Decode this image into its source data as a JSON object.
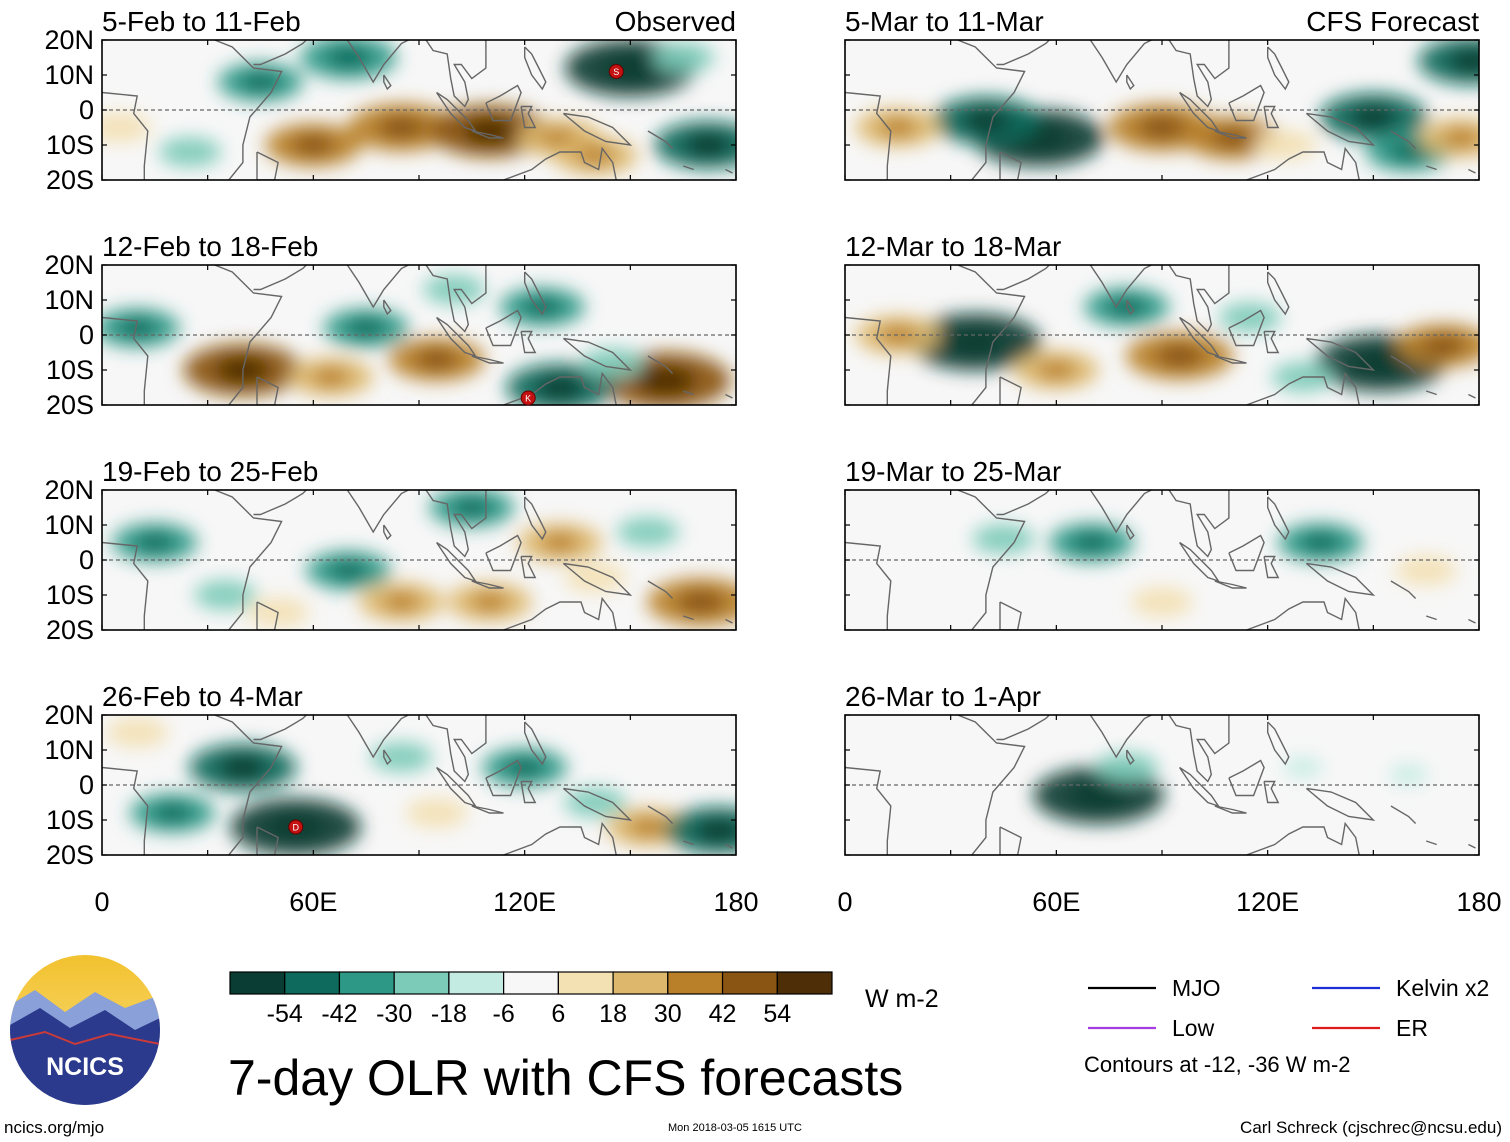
{
  "title": "7-day OLR with CFS forecasts",
  "units": "W m-2",
  "footer": {
    "site": "ncics.org/mjo",
    "timestamp": "Mon 2018-03-05 1615 UTC",
    "author": "Carl Schreck (cjschrec@ncsu.edu)"
  },
  "logo": {
    "text": "NCICS",
    "colors": {
      "sky_top": "#f2c12e",
      "sky_bottom": "#f9e28a",
      "mountains": "#2b3a8c",
      "band": "#8aa0d8"
    }
  },
  "column_headers": {
    "left": "Observed",
    "right": "CFS Forecast"
  },
  "legend": {
    "items": [
      {
        "label": "MJO",
        "color": "#000000"
      },
      {
        "label": "Kelvin x2",
        "color": "#1c2fd6"
      },
      {
        "label": "Low",
        "color": "#a43ce0"
      },
      {
        "label": "ER",
        "color": "#e01a1a"
      }
    ],
    "note": "Contours at -12, -36 W m-2"
  },
  "colorbar": {
    "ticks": [
      "-54",
      "-42",
      "-30",
      "-18",
      "-6",
      "6",
      "18",
      "30",
      "42",
      "54"
    ],
    "colors": [
      "#0a3d33",
      "#0d6a5c",
      "#2e9887",
      "#7ccab8",
      "#c4ebe2",
      "#f7f7f7",
      "#f3e1b3",
      "#ddb86c",
      "#b98029",
      "#8a5512",
      "#4e2e06"
    ]
  },
  "chart_data": [
    {
      "type": "heatmap",
      "title": "5-Feb to 11-Feb",
      "header": "Observed",
      "xlabel": "",
      "ylabel": "",
      "xlim": [
        0,
        180
      ],
      "ylim": [
        -20,
        20
      ],
      "xticks": [
        "0",
        "60E",
        "120E",
        "180"
      ],
      "yticks": [
        "20N",
        "10N",
        "0",
        "10S",
        "20S"
      ],
      "anomalies": [
        {
          "lon": 85,
          "lat": -5,
          "value": 42
        },
        {
          "lon": 110,
          "lat": -6,
          "value": 48
        },
        {
          "lon": 60,
          "lat": -10,
          "value": 36
        },
        {
          "lon": 130,
          "lat": -8,
          "value": 30
        },
        {
          "lon": 70,
          "lat": 15,
          "value": -36
        },
        {
          "lon": 150,
          "lat": 12,
          "value": -54
        },
        {
          "lon": 45,
          "lat": 8,
          "value": -30
        },
        {
          "lon": 25,
          "lat": -12,
          "value": -18
        },
        {
          "lon": 172,
          "lat": -10,
          "value": -42
        },
        {
          "lon": 140,
          "lat": -13,
          "value": 30
        },
        {
          "lon": 5,
          "lat": -5,
          "value": 18
        },
        {
          "lon": 165,
          "lat": 15,
          "value": -18
        }
      ],
      "markers": [
        {
          "label": "S",
          "lon": 146,
          "lat": 11
        }
      ]
    },
    {
      "type": "heatmap",
      "title": "12-Feb to 18-Feb",
      "header": "",
      "xlabel": "",
      "ylabel": "",
      "xlim": [
        0,
        180
      ],
      "ylim": [
        -20,
        20
      ],
      "xticks": [
        "0",
        "60E",
        "120E",
        "180"
      ],
      "yticks": [
        "20N",
        "10N",
        "0",
        "10S",
        "20S"
      ],
      "anomalies": [
        {
          "lon": 95,
          "lat": -7,
          "value": 36
        },
        {
          "lon": 40,
          "lat": -10,
          "value": 48
        },
        {
          "lon": 160,
          "lat": -13,
          "value": 54
        },
        {
          "lon": 130,
          "lat": -15,
          "value": -42
        },
        {
          "lon": 75,
          "lat": 2,
          "value": -30
        },
        {
          "lon": 125,
          "lat": 8,
          "value": -30
        },
        {
          "lon": 10,
          "lat": 2,
          "value": -30
        },
        {
          "lon": 100,
          "lat": 13,
          "value": -18
        },
        {
          "lon": 65,
          "lat": -12,
          "value": 30
        },
        {
          "lon": 145,
          "lat": -8,
          "value": -18
        }
      ],
      "markers": [
        {
          "label": "K",
          "lon": 121,
          "lat": -18
        }
      ]
    },
    {
      "type": "heatmap",
      "title": "19-Feb to 25-Feb",
      "header": "",
      "xlabel": "",
      "ylabel": "",
      "xlim": [
        0,
        180
      ],
      "ylim": [
        -20,
        20
      ],
      "xticks": [
        "0",
        "60E",
        "120E",
        "180"
      ],
      "yticks": [
        "20N",
        "10N",
        "0",
        "10S",
        "20S"
      ],
      "anomalies": [
        {
          "lon": 70,
          "lat": -3,
          "value": -30
        },
        {
          "lon": 15,
          "lat": 5,
          "value": -30
        },
        {
          "lon": 105,
          "lat": 15,
          "value": -30
        },
        {
          "lon": 170,
          "lat": -12,
          "value": 42
        },
        {
          "lon": 110,
          "lat": -12,
          "value": 30
        },
        {
          "lon": 85,
          "lat": -12,
          "value": 30
        },
        {
          "lon": 140,
          "lat": -5,
          "value": 18
        },
        {
          "lon": 35,
          "lat": -10,
          "value": -18
        },
        {
          "lon": 155,
          "lat": 8,
          "value": -18
        },
        {
          "lon": 130,
          "lat": 5,
          "value": 30
        },
        {
          "lon": 50,
          "lat": -15,
          "value": 18
        }
      ],
      "markers": []
    },
    {
      "type": "heatmap",
      "title": "26-Feb to 4-Mar",
      "header": "",
      "xlabel": "",
      "ylabel": "",
      "xlim": [
        0,
        180
      ],
      "ylim": [
        -20,
        20
      ],
      "xticks": [
        "0",
        "60E",
        "120E",
        "180"
      ],
      "yticks": [
        "20N",
        "10N",
        "0",
        "10S",
        "20S"
      ],
      "anomalies": [
        {
          "lon": 55,
          "lat": -12,
          "value": -54
        },
        {
          "lon": 40,
          "lat": 5,
          "value": -42
        },
        {
          "lon": 120,
          "lat": 5,
          "value": -30
        },
        {
          "lon": 20,
          "lat": -8,
          "value": -30
        },
        {
          "lon": 95,
          "lat": -8,
          "value": 18
        },
        {
          "lon": 155,
          "lat": -12,
          "value": 30
        },
        {
          "lon": 85,
          "lat": 8,
          "value": -18
        },
        {
          "lon": 175,
          "lat": -13,
          "value": -42
        },
        {
          "lon": 10,
          "lat": 15,
          "value": 18
        },
        {
          "lon": 140,
          "lat": -5,
          "value": -18
        }
      ],
      "markers": [
        {
          "label": "D",
          "lon": 55,
          "lat": -12
        }
      ]
    },
    {
      "type": "heatmap",
      "title": "5-Mar to 11-Mar",
      "header": "CFS Forecast",
      "xlabel": "",
      "ylabel": "",
      "xlim": [
        0,
        180
      ],
      "ylim": [
        -20,
        20
      ],
      "xticks": [
        "0",
        "60E",
        "120E",
        "180"
      ],
      "yticks": [
        "20N",
        "10N",
        "0",
        "10S",
        "20S"
      ],
      "anomalies": [
        {
          "lon": 55,
          "lat": -8,
          "value": -54
        },
        {
          "lon": 40,
          "lat": -3,
          "value": -42
        },
        {
          "lon": 150,
          "lat": -2,
          "value": -42
        },
        {
          "lon": 90,
          "lat": -5,
          "value": 42
        },
        {
          "lon": 110,
          "lat": -8,
          "value": 36
        },
        {
          "lon": 15,
          "lat": -5,
          "value": 30
        },
        {
          "lon": 160,
          "lat": -12,
          "value": -30
        },
        {
          "lon": 178,
          "lat": 14,
          "value": -42
        },
        {
          "lon": 175,
          "lat": -8,
          "value": 30
        },
        {
          "lon": 125,
          "lat": -10,
          "value": 18
        }
      ],
      "markers": []
    },
    {
      "type": "heatmap",
      "title": "12-Mar to 18-Mar",
      "header": "",
      "xlabel": "",
      "ylabel": "",
      "xlim": [
        0,
        180
      ],
      "ylim": [
        -20,
        20
      ],
      "xticks": [
        "0",
        "60E",
        "120E",
        "180"
      ],
      "yticks": [
        "20N",
        "10N",
        "0",
        "10S",
        "20S"
      ],
      "anomalies": [
        {
          "lon": 37,
          "lat": -2,
          "value": -54
        },
        {
          "lon": 152,
          "lat": -8,
          "value": -54
        },
        {
          "lon": 95,
          "lat": -6,
          "value": 42
        },
        {
          "lon": 170,
          "lat": -3,
          "value": 36
        },
        {
          "lon": 80,
          "lat": 8,
          "value": -30
        },
        {
          "lon": 60,
          "lat": -10,
          "value": 30
        },
        {
          "lon": 15,
          "lat": 0,
          "value": 30
        },
        {
          "lon": 115,
          "lat": 5,
          "value": -18
        },
        {
          "lon": 130,
          "lat": -12,
          "value": -18
        }
      ],
      "markers": []
    },
    {
      "type": "heatmap",
      "title": "19-Mar to 25-Mar",
      "header": "",
      "xlabel": "",
      "ylabel": "",
      "xlim": [
        0,
        180
      ],
      "ylim": [
        -20,
        20
      ],
      "xticks": [
        "0",
        "60E",
        "120E",
        "180"
      ],
      "yticks": [
        "20N",
        "10N",
        "0",
        "10S",
        "20S"
      ],
      "anomalies": [
        {
          "lon": 70,
          "lat": 5,
          "value": -30
        },
        {
          "lon": 135,
          "lat": 5,
          "value": -30
        },
        {
          "lon": 90,
          "lat": -12,
          "value": 18
        },
        {
          "lon": 165,
          "lat": -3,
          "value": 18
        },
        {
          "lon": 45,
          "lat": 6,
          "value": -18
        },
        {
          "lon": 110,
          "lat": -10,
          "value": 6
        }
      ],
      "markers": []
    },
    {
      "type": "heatmap",
      "title": "26-Mar to 1-Apr",
      "header": "",
      "xlabel": "",
      "ylabel": "",
      "xlim": [
        0,
        180
      ],
      "ylim": [
        -20,
        20
      ],
      "xticks": [
        "0",
        "60E",
        "120E",
        "180"
      ],
      "yticks": [
        "20N",
        "10N",
        "0",
        "10S",
        "20S"
      ],
      "anomalies": [
        {
          "lon": 72,
          "lat": -3,
          "value": -54
        },
        {
          "lon": 80,
          "lat": 5,
          "value": -18
        },
        {
          "lon": 130,
          "lat": 5,
          "value": -6
        },
        {
          "lon": 105,
          "lat": 0,
          "value": 6
        },
        {
          "lon": 160,
          "lat": 3,
          "value": -6
        }
      ],
      "markers": []
    }
  ]
}
